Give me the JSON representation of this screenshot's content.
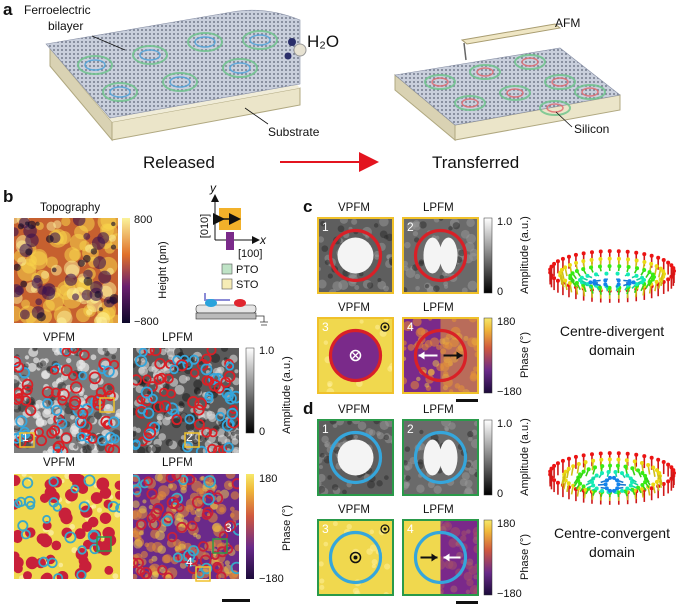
{
  "panel_a": {
    "label": "a",
    "released": {
      "film": [
        "Ferroelectric",
        "bilayer"
      ],
      "water": "H₂O",
      "substrate": "Substrate",
      "caption": "Released"
    },
    "transferred": {
      "probe": "AFM",
      "substrate": "Silicon",
      "caption": "Transferred"
    }
  },
  "panel_b": {
    "label": "b",
    "topography": {
      "title": "Topography",
      "colorbar": {
        "max": "800",
        "min": "−800",
        "title": "Height (pm)"
      }
    },
    "axes": {
      "y": "y",
      "y_dir": "[010]",
      "x": "x",
      "x_dir": "[100]"
    },
    "legend": [
      "PTO",
      "STO"
    ],
    "amplitude": {
      "titles": [
        "VPFM",
        "LPFM"
      ],
      "markers": [
        "1",
        "2"
      ],
      "colorbar": {
        "max": "1.0",
        "min": "0",
        "title": "Amplitude (a.u.)"
      }
    },
    "phase": {
      "titles": [
        "VPFM",
        "LPFM"
      ],
      "markers": [
        "3",
        "4"
      ],
      "colorbar": {
        "max": "180",
        "min": "−180",
        "title": "Phase (°)"
      }
    }
  },
  "panel_c": {
    "label": "c",
    "amplitude": {
      "titles": [
        "VPFM",
        "LPFM"
      ],
      "markers": [
        "1",
        "2"
      ],
      "colorbar": {
        "max": "1.0",
        "min": "0",
        "title": "Amplitude (a.u.)"
      }
    },
    "phase": {
      "titles": [
        "VPFM",
        "LPFM"
      ],
      "markers": [
        "3",
        "4"
      ],
      "colorbar": {
        "max": "180",
        "min": "−180",
        "title": "Phase (°)"
      }
    },
    "caption": [
      "Centre-divergent",
      "domain"
    ]
  },
  "panel_d": {
    "label": "d",
    "amplitude": {
      "titles": [
        "VPFM",
        "LPFM"
      ],
      "markers": [
        "1",
        "2"
      ],
      "colorbar": {
        "max": "1.0",
        "min": "0",
        "title": "Amplitude (a.u.)"
      }
    },
    "phase": {
      "titles": [
        "VPFM",
        "LPFM"
      ],
      "markers": [
        "3",
        "4"
      ],
      "colorbar": {
        "max": "180",
        "min": "−180",
        "title": "Phase (°)"
      }
    },
    "caption": [
      "Centre-convergent",
      "domain"
    ]
  }
}
